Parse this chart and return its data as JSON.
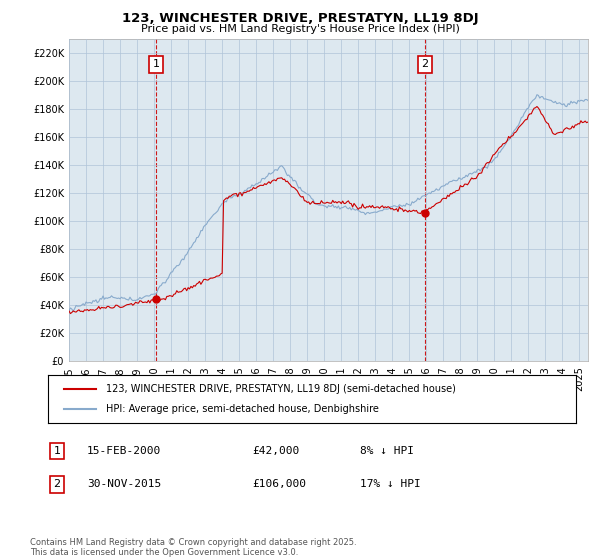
{
  "title": "123, WINCHESTER DRIVE, PRESTATYN, LL19 8DJ",
  "subtitle": "Price paid vs. HM Land Registry's House Price Index (HPI)",
  "ylim": [
    0,
    230000
  ],
  "yticks": [
    0,
    20000,
    40000,
    60000,
    80000,
    100000,
    120000,
    140000,
    160000,
    180000,
    200000,
    220000
  ],
  "xlim_start": 1995.0,
  "xlim_end": 2025.5,
  "xticks": [
    1995,
    1996,
    1997,
    1998,
    1999,
    2000,
    2001,
    2002,
    2003,
    2004,
    2005,
    2006,
    2007,
    2008,
    2009,
    2010,
    2011,
    2012,
    2013,
    2014,
    2015,
    2016,
    2017,
    2018,
    2019,
    2020,
    2021,
    2022,
    2023,
    2024,
    2025
  ],
  "sale1_x": 2000.125,
  "sale1_y": 42000,
  "sale1_label": "1",
  "sale1_date": "15-FEB-2000",
  "sale1_price": "£42,000",
  "sale1_hpi": "8% ↓ HPI",
  "sale2_x": 2015.917,
  "sale2_y": 106000,
  "sale2_label": "2",
  "sale2_date": "30-NOV-2015",
  "sale2_price": "£106,000",
  "sale2_hpi": "17% ↓ HPI",
  "line1_color": "#cc0000",
  "line2_color": "#88aacc",
  "vline_color": "#cc0000",
  "chart_bg_color": "#dde8f0",
  "legend1_text": "123, WINCHESTER DRIVE, PRESTATYN, LL19 8DJ (semi-detached house)",
  "legend2_text": "HPI: Average price, semi-detached house, Denbighshire",
  "footnote": "Contains HM Land Registry data © Crown copyright and database right 2025.\nThis data is licensed under the Open Government Licence v3.0.",
  "background_color": "#ffffff",
  "grid_color": "#b0c4d8"
}
